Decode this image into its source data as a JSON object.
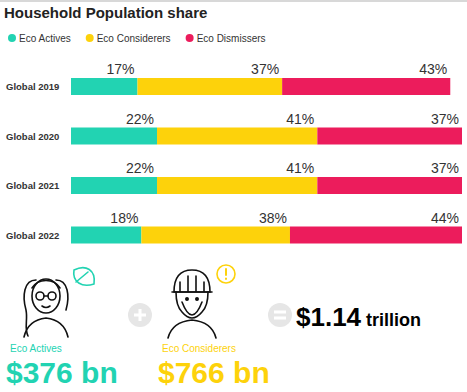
{
  "chart_data": {
    "type": "bar",
    "orientation": "horizontal",
    "stacked": true,
    "title": "Household Population share",
    "categories": [
      "Global 2019",
      "Global 2020",
      "Global 2021",
      "Global 2022"
    ],
    "series": [
      {
        "name": "Eco Actives",
        "color": "#22d3b2",
        "values": [
          17,
          22,
          22,
          18
        ],
        "value_labels": [
          "17%",
          "22%",
          "22%",
          "18%"
        ]
      },
      {
        "name": "Eco Considerers",
        "color": "#fdd20b",
        "values": [
          37,
          41,
          41,
          38
        ],
        "value_labels": [
          "37%",
          "41%",
          "41%",
          "38%"
        ]
      },
      {
        "name": "Eco Dismissers",
        "color": "#ec1c5c",
        "values": [
          43,
          37,
          37,
          44
        ],
        "value_labels": [
          "43%",
          "37%",
          "37%",
          "44%"
        ]
      }
    ],
    "xlim": [
      0,
      100
    ],
    "grid": false,
    "tick_labels": false,
    "data_labels": true,
    "legend": "top",
    "annotations": [
      {
        "label": "Eco Actives",
        "text": "$376 bn",
        "color": "#22d3b2"
      },
      {
        "label": "Eco Considerers",
        "text": "$766 bn",
        "color": "#fdd20b"
      },
      {
        "text": "$1.14 trillion",
        "color": "#000000"
      }
    ]
  }
}
